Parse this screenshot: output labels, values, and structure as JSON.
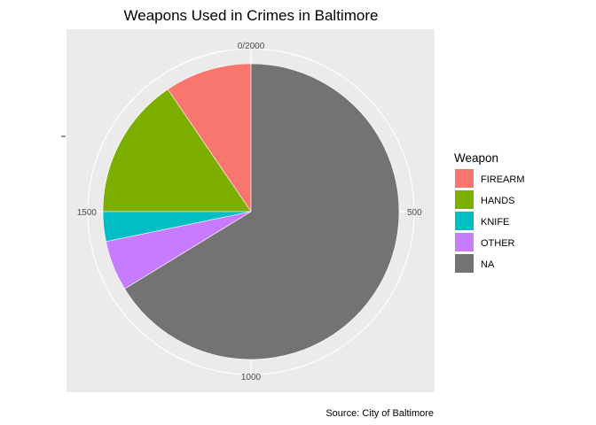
{
  "chart_data": {
    "type": "pie",
    "title": "Weapons Used in Crimes in Baltimore",
    "caption": "Source: City of Baltimore",
    "legend_title": "Weapon",
    "legend_position": "right",
    "grid": true,
    "total": 2000,
    "radial_ticks": [
      "0/2000",
      "500",
      "1000",
      "1500"
    ],
    "slices": [
      {
        "label": "FIREARM",
        "value": 190,
        "color": "#F8766D"
      },
      {
        "label": "HANDS",
        "value": 310,
        "color": "#7CAE00"
      },
      {
        "label": "KNIFE",
        "value": 65,
        "color": "#00BFC4"
      },
      {
        "label": "OTHER",
        "value": 110,
        "color": "#C77CFF"
      },
      {
        "label": "NA",
        "value": 1325,
        "color": "#737373"
      }
    ]
  }
}
